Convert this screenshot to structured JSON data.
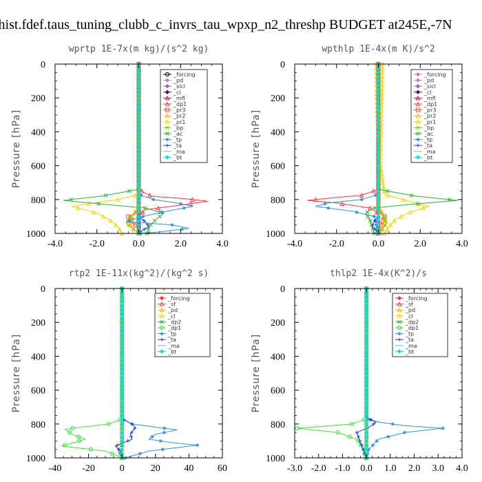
{
  "figure_title": "thist.fdef.taus_tuning_clubb_c_invrs_tau_wpxp_n2_threshp  BUDGET at245E,-7N",
  "chart_data": [
    {
      "type": "line",
      "title": "wprtp  1E-7x(m kg)/(s^2 kg)",
      "ylabel": "Pressure [hPa]",
      "xlim": [
        -4,
        4
      ],
      "ylim": [
        1000,
        0
      ],
      "xticks": [
        -4,
        -2,
        0,
        2,
        4
      ],
      "xtick_labels": [
        "-4.0",
        "-2.0",
        "0.0",
        "2.0",
        "4.0"
      ],
      "yticks": [
        0,
        200,
        400,
        600,
        800,
        1000
      ],
      "ytick_labels": [
        "0",
        "200",
        "400",
        "600",
        "800",
        "1000"
      ],
      "legend_position": "top-right",
      "series": [
        {
          "name": "_forcing",
          "color": "#000000",
          "marker": "circle",
          "x": [
            0,
            0
          ],
          "y": [
            0,
            1000
          ]
        },
        {
          "name": "_pd",
          "color": "#c080c0",
          "marker": "diamond",
          "x": [
            0,
            0
          ],
          "y": [
            0,
            1000
          ]
        },
        {
          "name": "_sicl",
          "color": "#9060c0",
          "marker": "diamond",
          "x": [
            0,
            0
          ],
          "y": [
            0,
            1000
          ]
        },
        {
          "name": "_cl",
          "color": "#600060",
          "marker": "diamond",
          "x": [
            0,
            0
          ],
          "y": [
            0,
            1000
          ]
        },
        {
          "name": "_mfl",
          "color": "#c00040",
          "marker": "triangle",
          "x": [
            0,
            0
          ],
          "y": [
            0,
            1000
          ]
        },
        {
          "name": "_dp1",
          "color": "#ff3030",
          "marker": "triangle",
          "x": [
            0,
            0,
            0.6,
            2.2,
            3.3,
            2.2,
            0.3,
            0,
            0
          ],
          "y": [
            0,
            740,
            780,
            795,
            810,
            830,
            860,
            900,
            1000
          ]
        },
        {
          "name": "_pr3",
          "color": "#ff4040",
          "marker": "square",
          "x": [
            0,
            0,
            -0.5,
            -0.3,
            0,
            0
          ],
          "y": [
            0,
            880,
            900,
            940,
            960,
            1000
          ]
        },
        {
          "name": "_pr2",
          "color": "#ffaa00",
          "marker": "triangle",
          "x": [
            0,
            0,
            -0.2,
            -0.5,
            -0.3,
            0
          ],
          "y": [
            0,
            840,
            880,
            930,
            970,
            1000
          ]
        },
        {
          "name": "_pr1",
          "color": "#f0d000",
          "marker": "triangle",
          "x": [
            0,
            0,
            -1.0,
            -3.2,
            -2.0,
            -1.4,
            -1.0,
            -0.8
          ],
          "y": [
            0,
            770,
            800,
            840,
            880,
            920,
            960,
            1000
          ]
        },
        {
          "name": "_bp",
          "color": "#80d000",
          "marker": "cross",
          "x": [
            0,
            0,
            -0.4,
            -0.6,
            -0.3,
            0
          ],
          "y": [
            0,
            860,
            900,
            940,
            970,
            1000
          ]
        },
        {
          "name": "_ac",
          "color": "#30b030",
          "marker": "cross",
          "x": [
            0,
            0,
            -1.8,
            -3.6,
            -1.5,
            0.3,
            1.2,
            0.8,
            0.5,
            0.4
          ],
          "y": [
            0,
            740,
            780,
            805,
            830,
            850,
            880,
            920,
            960,
            1000
          ]
        },
        {
          "name": "_tp",
          "color": "#3090d0",
          "marker": "star",
          "x": [
            0,
            0,
            0.7,
            1.8,
            2.6,
            1.3,
            0.2,
            -0.6,
            1.6,
            2.4,
            1.1,
            0.1
          ],
          "y": [
            0,
            770,
            800,
            820,
            840,
            870,
            900,
            930,
            950,
            970,
            990,
            1000
          ]
        },
        {
          "name": "_ta",
          "color": "#2040d0",
          "marker": "plus",
          "x": [
            0,
            0,
            0.3,
            0.5,
            0.2,
            0
          ],
          "y": [
            0,
            900,
            930,
            960,
            980,
            1000
          ]
        },
        {
          "name": "_ma",
          "color": "#80b0d0",
          "marker": "none",
          "x": [
            0,
            0
          ],
          "y": [
            0,
            1000
          ]
        },
        {
          "name": "_bt",
          "color": "#00e0e0",
          "marker": "diamond",
          "x": [
            0,
            0
          ],
          "y": [
            0,
            1000
          ]
        }
      ]
    },
    {
      "type": "line",
      "title": "wpthlp  1E-4x(m K)/s^2",
      "ylabel": "Pressure [hPa]",
      "xlim": [
        -4,
        4
      ],
      "ylim": [
        1000,
        0
      ],
      "xticks": [
        -4,
        -2,
        0,
        2,
        4
      ],
      "xtick_labels": [
        "-4.0",
        "-2.0",
        "0.0",
        "2.0",
        "4.0"
      ],
      "yticks": [
        0,
        200,
        400,
        600,
        800,
        1000
      ],
      "ytick_labels": [
        "0",
        "200",
        "400",
        "600",
        "800",
        "1000"
      ],
      "legend_position": "top-right",
      "series": [
        {
          "name": "_forcing",
          "color": "#c080c0",
          "marker": "diamond",
          "x": [
            0,
            0
          ],
          "y": [
            0,
            1000
          ]
        },
        {
          "name": "_pd",
          "color": "#c080c0",
          "marker": "diamond",
          "x": [
            0,
            0
          ],
          "y": [
            0,
            1000
          ]
        },
        {
          "name": "_sicl",
          "color": "#9060c0",
          "marker": "diamond",
          "x": [
            0,
            0
          ],
          "y": [
            0,
            1000
          ]
        },
        {
          "name": "_cl",
          "color": "#600060",
          "marker": "diamond",
          "x": [
            0,
            0
          ],
          "y": [
            0,
            1000
          ]
        },
        {
          "name": "_mfl",
          "color": "#c00040",
          "marker": "triangle",
          "x": [
            0,
            0
          ],
          "y": [
            0,
            1000
          ]
        },
        {
          "name": "_dp1",
          "color": "#ff3030",
          "marker": "triangle",
          "x": [
            0,
            0,
            -0.8,
            -2.2,
            -3.4,
            -2.0,
            -0.4,
            0,
            0
          ],
          "y": [
            0,
            740,
            775,
            790,
            805,
            820,
            850,
            880,
            1000
          ]
        },
        {
          "name": "_pr3",
          "color": "#ff4040",
          "marker": "square",
          "x": [
            0,
            0,
            0.3,
            0.2,
            0,
            0
          ],
          "y": [
            0,
            880,
            900,
            940,
            960,
            1000
          ]
        },
        {
          "name": "_pr2",
          "color": "#ffaa00",
          "marker": "triangle",
          "x": [
            -0.1,
            -0.05,
            0.05,
            0,
            0.2,
            0.3,
            0.2,
            0.1
          ],
          "y": [
            0,
            300,
            600,
            840,
            880,
            930,
            970,
            1000
          ]
        },
        {
          "name": "_pr1",
          "color": "#f0d000",
          "marker": "triangle",
          "x": [
            0.2,
            0.15,
            0.1,
            0.3,
            2.4,
            1.4,
            0.8,
            0.5,
            0.3
          ],
          "y": [
            0,
            300,
            600,
            770,
            840,
            880,
            920,
            960,
            1000
          ]
        },
        {
          "name": "_bp",
          "color": "#80d000",
          "marker": "cross",
          "x": [
            0,
            0,
            0.3,
            0.4,
            0.2,
            0
          ],
          "y": [
            0,
            860,
            900,
            940,
            970,
            1000
          ]
        },
        {
          "name": "_ac",
          "color": "#30b030",
          "marker": "cross",
          "x": [
            0,
            0,
            1.8,
            3.8,
            1.4,
            -0.2,
            -0.6,
            -0.4,
            -0.2
          ],
          "y": [
            0,
            740,
            780,
            805,
            830,
            850,
            880,
            920,
            1000
          ]
        },
        {
          "name": "_tp",
          "color": "#3090d0",
          "marker": "star",
          "x": [
            0,
            0,
            -0.8,
            -2.4,
            -3.0,
            -1.2,
            -0.2,
            -0.1,
            0
          ],
          "y": [
            0,
            770,
            800,
            820,
            840,
            870,
            900,
            950,
            1000
          ]
        },
        {
          "name": "_ta",
          "color": "#2040d0",
          "marker": "plus",
          "x": [
            0,
            0,
            -0.2,
            -0.3,
            -0.1,
            0
          ],
          "y": [
            0,
            900,
            930,
            960,
            980,
            1000
          ]
        },
        {
          "name": "_ma",
          "color": "#80b0d0",
          "marker": "none",
          "x": [
            0,
            0
          ],
          "y": [
            0,
            1000
          ]
        },
        {
          "name": "_bt",
          "color": "#00e0e0",
          "marker": "diamond",
          "x": [
            0,
            0
          ],
          "y": [
            0,
            1000
          ]
        }
      ]
    },
    {
      "type": "line",
      "title": "rtp2  1E-11x(kg^2)/(kg^2 s)",
      "ylabel": "Pressure [hPa]",
      "xlim": [
        -40,
        60
      ],
      "ylim": [
        1000,
        0
      ],
      "xticks": [
        -40,
        -20,
        0,
        20,
        40,
        60
      ],
      "xtick_labels": [
        "-40",
        "-20",
        "0",
        "20",
        "40",
        "60"
      ],
      "yticks": [
        0,
        200,
        400,
        600,
        800,
        1000
      ],
      "ytick_labels": [
        "0",
        "200",
        "400",
        "600",
        "800",
        "1000"
      ],
      "legend_position": "top-right",
      "series": [
        {
          "name": "_forcing",
          "color": "#ff3030",
          "marker": "diamond",
          "x": [
            0,
            0
          ],
          "y": [
            0,
            1000
          ]
        },
        {
          "name": "_sf",
          "color": "#ff3030",
          "marker": "triangle",
          "x": [
            0,
            0
          ],
          "y": [
            0,
            1000
          ]
        },
        {
          "name": "_pd",
          "color": "#ffaa00",
          "marker": "triangle",
          "x": [
            0,
            0
          ],
          "y": [
            0,
            1000
          ]
        },
        {
          "name": "_cl",
          "color": "#f0d000",
          "marker": "triangle",
          "x": [
            0,
            0
          ],
          "y": [
            0,
            1000
          ]
        },
        {
          "name": "_dp2",
          "color": "#30b030",
          "marker": "cross",
          "x": [
            0,
            0,
            -2,
            -1,
            0
          ],
          "y": [
            0,
            940,
            960,
            980,
            1000
          ]
        },
        {
          "name": "_dp1",
          "color": "#40e040",
          "marker": "circle",
          "x": [
            0,
            0,
            -8,
            -34,
            -30,
            -22,
            -36,
            -10,
            -2,
            0
          ],
          "y": [
            0,
            770,
            800,
            830,
            860,
            890,
            930,
            960,
            990,
            1000
          ]
        },
        {
          "name": "_tp",
          "color": "#3090d0",
          "marker": "star",
          "x": [
            0,
            0,
            6,
            33,
            20,
            16,
            30,
            45,
            16,
            2
          ],
          "y": [
            0,
            770,
            800,
            835,
            860,
            890,
            910,
            925,
            960,
            1000
          ]
        },
        {
          "name": "_ta",
          "color": "#2040d0",
          "marker": "plus",
          "x": [
            0,
            0,
            6,
            8,
            5,
            6,
            -4,
            -1,
            0
          ],
          "y": [
            0,
            770,
            800,
            820,
            860,
            890,
            930,
            960,
            1000
          ]
        },
        {
          "name": "_ma",
          "color": "#80b0d0",
          "marker": "none",
          "x": [
            0,
            0
          ],
          "y": [
            0,
            1000
          ]
        },
        {
          "name": "_bt",
          "color": "#00e0e0",
          "marker": "diamond",
          "x": [
            0,
            0
          ],
          "y": [
            0,
            1000
          ]
        }
      ]
    },
    {
      "type": "line",
      "title": "thlp2  1E-4x(K^2)/s",
      "ylabel": "Pressure [hPa]",
      "xlim": [
        -3,
        4
      ],
      "ylim": [
        1000,
        0
      ],
      "xticks": [
        -3,
        -2,
        -1,
        0,
        1,
        2,
        3,
        4
      ],
      "xtick_labels": [
        "-3.0",
        "-2.0",
        "-1.0",
        "0.0",
        "1.0",
        "2.0",
        "3.0",
        "4.0"
      ],
      "yticks": [
        0,
        200,
        400,
        600,
        800,
        1000
      ],
      "ytick_labels": [
        "0",
        "200",
        "400",
        "600",
        "800",
        "1000"
      ],
      "legend_position": "top-right",
      "series": [
        {
          "name": "_forcing",
          "color": "#ff3030",
          "marker": "diamond",
          "x": [
            0,
            0
          ],
          "y": [
            0,
            1000
          ]
        },
        {
          "name": "_sf",
          "color": "#ff3030",
          "marker": "triangle",
          "x": [
            0,
            0
          ],
          "y": [
            0,
            1000
          ]
        },
        {
          "name": "_pd",
          "color": "#ffaa00",
          "marker": "triangle",
          "x": [
            0,
            0
          ],
          "y": [
            0,
            1000
          ]
        },
        {
          "name": "_cl",
          "color": "#f0d000",
          "marker": "triangle",
          "x": [
            0,
            0
          ],
          "y": [
            0,
            1000
          ]
        },
        {
          "name": "_dp2",
          "color": "#30b030",
          "marker": "cross",
          "x": [
            0,
            0,
            -0.1,
            0
          ],
          "y": [
            0,
            940,
            970,
            1000
          ]
        },
        {
          "name": "_dp1",
          "color": "#40e040",
          "marker": "circle",
          "x": [
            0,
            0,
            -0.6,
            -2.9,
            -1.2,
            -0.4,
            -0.1,
            0
          ],
          "y": [
            0,
            770,
            800,
            825,
            850,
            890,
            950,
            1000
          ]
        },
        {
          "name": "_tp",
          "color": "#3090d0",
          "marker": "star",
          "x": [
            0,
            0,
            0.6,
            1.6,
            3.2,
            1.6,
            0.5,
            0.1,
            0
          ],
          "y": [
            0,
            770,
            790,
            810,
            825,
            850,
            890,
            950,
            1000
          ]
        },
        {
          "name": "_ta",
          "color": "#2040d0",
          "marker": "plus",
          "x": [
            0,
            0,
            0.4,
            0.1,
            -0.4,
            -0.3,
            0
          ],
          "y": [
            0,
            760,
            790,
            820,
            850,
            890,
            1000
          ]
        },
        {
          "name": "_ma",
          "color": "#80b0d0",
          "marker": "none",
          "x": [
            0,
            0
          ],
          "y": [
            0,
            1000
          ]
        },
        {
          "name": "_bt",
          "color": "#00e0e0",
          "marker": "diamond",
          "x": [
            0,
            0
          ],
          "y": [
            0,
            1000
          ]
        }
      ]
    }
  ]
}
